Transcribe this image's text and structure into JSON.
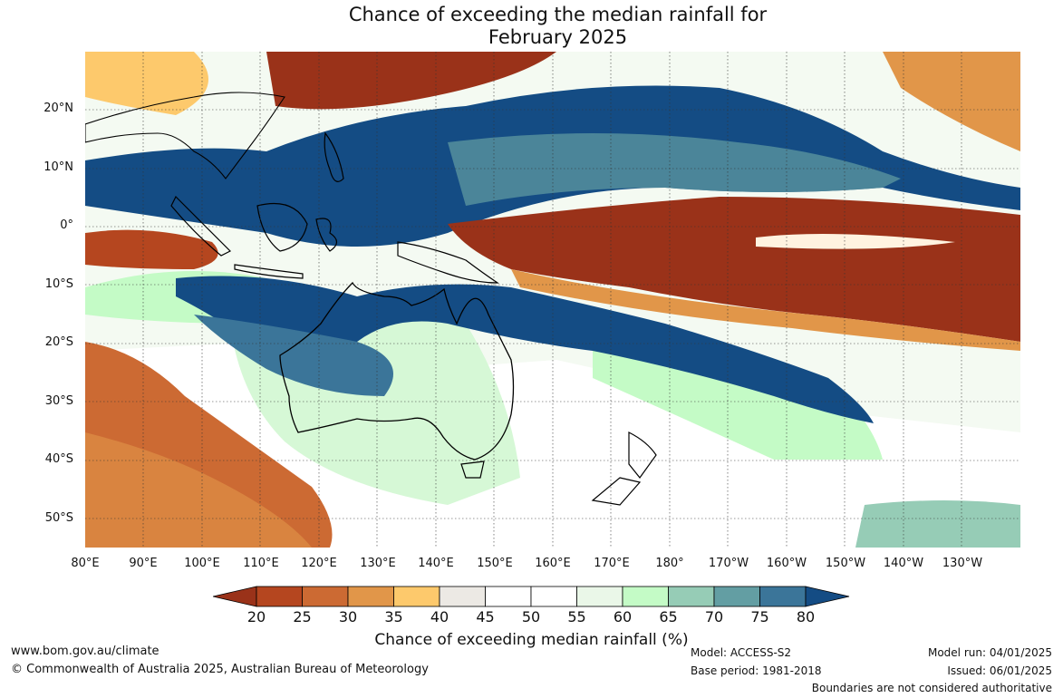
{
  "title_line1": "Chance of exceeding the median rainfall for",
  "title_line2": "February 2025",
  "map": {
    "lat_labels": [
      "20°N",
      "10°N",
      "0°",
      "10°S",
      "20°S",
      "30°S",
      "40°S",
      "50°S"
    ],
    "lon_labels": [
      "80°E",
      "90°E",
      "100°E",
      "110°E",
      "120°E",
      "130°E",
      "140°E",
      "150°E",
      "160°E",
      "170°E",
      "180°",
      "170°W",
      "160°W",
      "150°W",
      "140°W",
      "130°W"
    ],
    "regions_shown": [
      "Australia",
      "Indonesia",
      "New Guinea",
      "New Zealand",
      "Philippines",
      "Southeast Asia",
      "Pacific islands"
    ]
  },
  "colorbar": {
    "ticks": [
      "20",
      "25",
      "30",
      "35",
      "40",
      "45",
      "50",
      "55",
      "60",
      "65",
      "70",
      "75",
      "80"
    ],
    "colors": [
      "#9a3219",
      "#b5461f",
      "#cc6a33",
      "#e19649",
      "#fdc96c",
      "#ece9e4",
      "#ffffff",
      "#ffffff",
      "#eaf7e8",
      "#c4fbc6",
      "#96ccb6",
      "#639ea3",
      "#3b7599",
      "#144c84"
    ],
    "title": "Chance of exceeding median rainfall (%)"
  },
  "footer": {
    "website": "www.bom.gov.au/climate",
    "copyright": "© Commonwealth of Australia 2025, Australian Bureau of Meteorology",
    "model": "Model: ACCESS-S2",
    "base_period": "Base period: 1981-2018",
    "model_run": "Model run: 04/01/2025",
    "issued": "Issued: 06/01/2025",
    "disclaimer": "Boundaries are not considered authoritative"
  }
}
